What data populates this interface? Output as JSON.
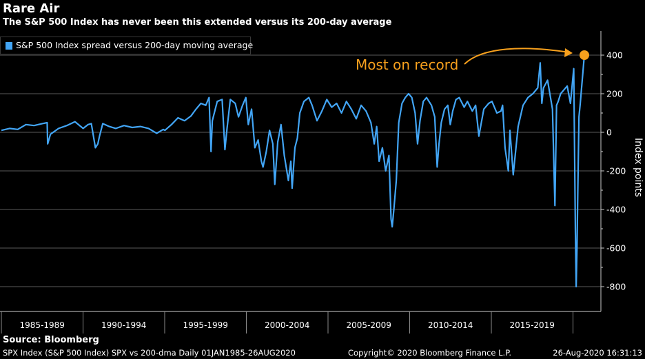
{
  "header": {
    "title": "Rare Air",
    "subtitle": "The S&P 500 Index has never been this extended versus its 200-day average"
  },
  "footer": {
    "source": "Source: Bloomberg",
    "left": "SPX Index (S&P 500 Index) SPX vs 200-dma  Daily 01JAN1985-26AUG2020",
    "center": "Copyright© 2020 Bloomberg Finance L.P.",
    "right": "26-Aug-2020 16:31:13"
  },
  "colors": {
    "background": "#000000",
    "series": "#42a5f5",
    "annotation": "#f7a01d",
    "grid": "#5a5a5a"
  },
  "chart_data": {
    "type": "line",
    "title": "Rare Air",
    "subtitle": "The S&P 500 Index has never been this extended versus its 200-day average",
    "ylabel": "Index points",
    "ylim": [
      -850,
      450
    ],
    "yticks": [
      -800,
      -600,
      -400,
      -200,
      0,
      200,
      400
    ],
    "grid": true,
    "legend_position": "top-left",
    "x_categories": [
      "1985-1989",
      "1990-1994",
      "1995-1999",
      "2000-2004",
      "2005-2009",
      "2010-2014",
      "2015-2019"
    ],
    "xlim": [
      1985.0,
      2020.65
    ],
    "series": [
      {
        "name": "S&P 500 Index spread versus 200-day moving average",
        "x": [
          1985.0,
          1985.5,
          1986.0,
          1986.5,
          1987.0,
          1987.5,
          1987.8,
          1987.83,
          1987.9,
          1988.0,
          1988.5,
          1989.0,
          1989.5,
          1990.0,
          1990.3,
          1990.5,
          1990.75,
          1990.9,
          1991.0,
          1991.2,
          1991.6,
          1992.0,
          1992.5,
          1993.0,
          1993.5,
          1994.0,
          1994.5,
          1994.9,
          1995.0,
          1995.4,
          1995.8,
          1996.2,
          1996.6,
          1996.9,
          1997.2,
          1997.5,
          1997.7,
          1997.82,
          1997.9,
          1998.2,
          1998.5,
          1998.67,
          1998.8,
          1999.0,
          1999.3,
          1999.5,
          1999.75,
          1999.95,
          2000.1,
          2000.3,
          2000.5,
          2000.7,
          2000.9,
          2001.0,
          2001.2,
          2001.4,
          2001.6,
          2001.72,
          2001.9,
          2002.1,
          2002.3,
          2002.55,
          2002.7,
          2002.78,
          2002.95,
          2003.1,
          2003.25,
          2003.5,
          2003.8,
          2004.0,
          2004.3,
          2004.6,
          2004.9,
          2005.2,
          2005.5,
          2005.8,
          2006.1,
          2006.4,
          2006.7,
          2007.0,
          2007.3,
          2007.6,
          2007.8,
          2007.95,
          2008.1,
          2008.3,
          2008.5,
          2008.7,
          2008.83,
          2008.9,
          2009.0,
          2009.15,
          2009.3,
          2009.5,
          2009.7,
          2009.9,
          2010.1,
          2010.3,
          2010.45,
          2010.6,
          2010.8,
          2011.0,
          2011.3,
          2011.5,
          2011.65,
          2011.75,
          2011.9,
          2012.1,
          2012.3,
          2012.45,
          2012.6,
          2012.8,
          2013.0,
          2013.3,
          2013.5,
          2013.8,
          2014.0,
          2014.2,
          2014.5,
          2014.8,
          2015.0,
          2015.3,
          2015.55,
          2015.65,
          2015.8,
          2016.0,
          2016.1,
          2016.3,
          2016.6,
          2016.9,
          2017.2,
          2017.5,
          2017.8,
          2017.95,
          2018.05,
          2018.15,
          2018.4,
          2018.7,
          2018.85,
          2018.95,
          2019.05,
          2019.2,
          2019.4,
          2019.6,
          2019.8,
          2020.0,
          2020.1,
          2020.15,
          2020.2,
          2020.25,
          2020.32,
          2020.4,
          2020.5,
          2020.6,
          2020.65
        ],
        "values": [
          10,
          20,
          15,
          40,
          35,
          45,
          50,
          -60,
          -40,
          -10,
          20,
          35,
          55,
          20,
          40,
          45,
          -80,
          -60,
          -20,
          45,
          30,
          20,
          35,
          25,
          30,
          20,
          -5,
          15,
          10,
          40,
          75,
          60,
          85,
          120,
          150,
          140,
          180,
          -100,
          60,
          160,
          170,
          -90,
          20,
          170,
          150,
          80,
          140,
          180,
          40,
          120,
          -80,
          -40,
          -150,
          -180,
          -100,
          10,
          -60,
          -270,
          -50,
          40,
          -120,
          -250,
          -150,
          -290,
          -80,
          -30,
          100,
          160,
          180,
          140,
          60,
          110,
          170,
          130,
          150,
          100,
          160,
          120,
          70,
          140,
          110,
          50,
          -60,
          30,
          -150,
          -80,
          -200,
          -120,
          -450,
          -490,
          -400,
          -250,
          50,
          150,
          180,
          200,
          180,
          100,
          -60,
          60,
          160,
          180,
          140,
          80,
          -180,
          -70,
          50,
          120,
          140,
          40,
          110,
          170,
          180,
          130,
          160,
          110,
          140,
          -20,
          120,
          150,
          160,
          100,
          110,
          140,
          -80,
          -200,
          10,
          -220,
          30,
          140,
          180,
          200,
          230,
          360,
          150,
          230,
          270,
          120,
          -380,
          140,
          160,
          200,
          220,
          240,
          150,
          330,
          -500,
          -800,
          -600,
          -300,
          80,
          150,
          250,
          350,
          400
        ]
      }
    ],
    "annotations": [
      {
        "text": "Most on record",
        "x": 2020.65,
        "y": 400
      }
    ]
  }
}
